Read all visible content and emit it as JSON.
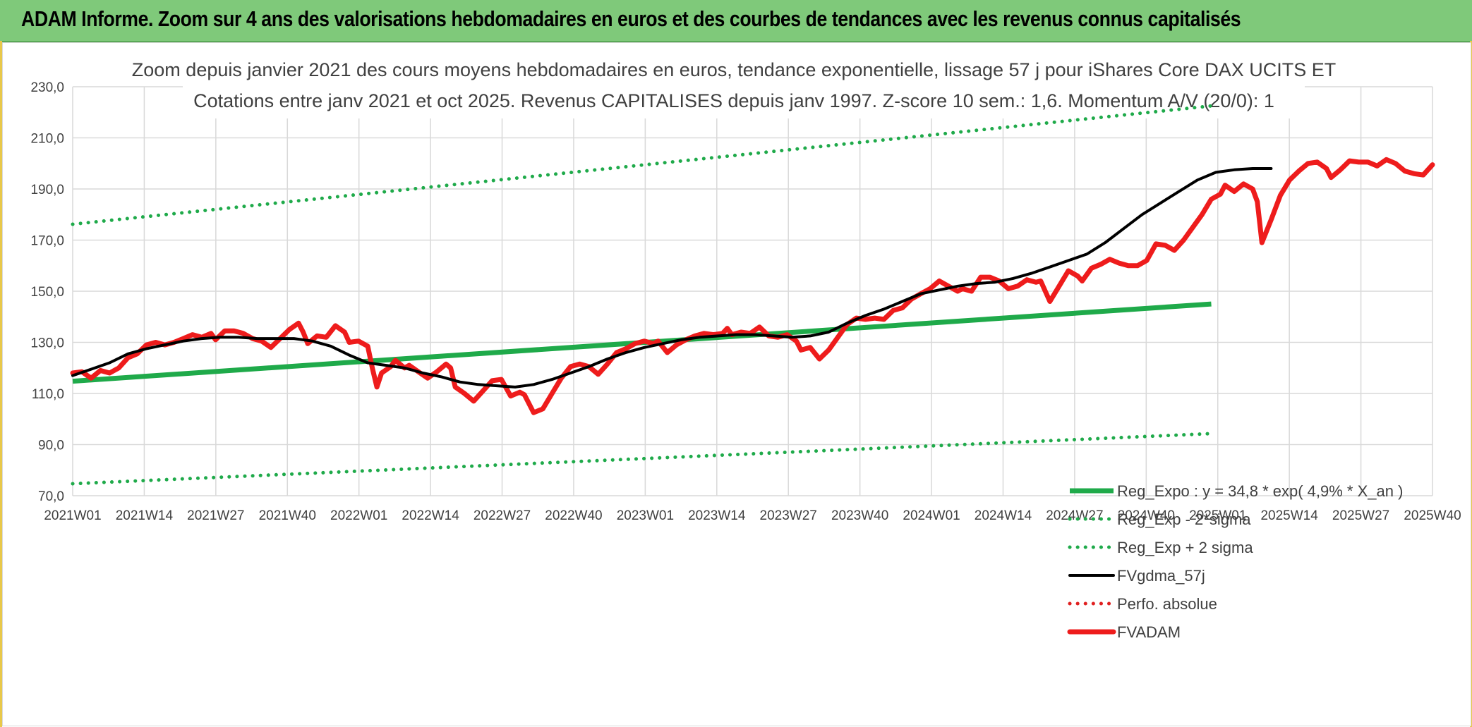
{
  "banner": {
    "text": "ADAM Informe. Zoom sur 4 ans des valorisations hebdomadaires en euros et des courbes de tendances avec les revenus connus capitalisés"
  },
  "colors": {
    "banner_bg": "#7fc97a",
    "trend_green": "#1faa4a",
    "fvadam_red": "#ee1c1c",
    "fvgdma_black": "#000000",
    "perfo_red": "#e02020",
    "grid": "#d9d9d9"
  },
  "chart_data": {
    "type": "line",
    "title": [
      "Zoom depuis janvier 2021 des cours moyens hebdomadaires en euros, tendance exponentielle, lissage 57 j pour iShares Core DAX UCITS ET",
      "Cotations entre janv 2021 et oct 2025. Revenus CAPITALISES depuis janv 1997. Z-score 10 sem.: 1,6. Momentum A/V (20/0): 1"
    ],
    "xlabel": "",
    "ylabel": "",
    "ylim": [
      70,
      230
    ],
    "y_ticks": [
      "70,0",
      "90,0",
      "110,0",
      "130,0",
      "150,0",
      "170,0",
      "190,0",
      "210,0",
      "230,0"
    ],
    "x_ticks": [
      "2021W01",
      "2021W14",
      "2021W27",
      "2021W40",
      "2022W01",
      "2022W14",
      "2022W27",
      "2022W40",
      "2023W01",
      "2023W14",
      "2023W27",
      "2023W40",
      "2024W01",
      "2024W14",
      "2024W27",
      "2024W40",
      "2025W01",
      "2025W14",
      "2025W27",
      "2025W40"
    ],
    "grid": true,
    "legend_position": "bottom-right",
    "series": [
      {
        "name": "Reg_Expo : y = 34,8 * exp( 4,9% *  X_an )",
        "style": "solid-thick",
        "color": "#1faa4a",
        "points": [
          [
            0,
            114.8
          ],
          [
            247,
            145.0
          ]
        ]
      },
      {
        "name": "Reg_Exp - 2*sigma",
        "style": "dotted",
        "color": "#1faa4a",
        "points": [
          [
            0,
            74.7
          ],
          [
            247,
            94.3
          ]
        ]
      },
      {
        "name": "Reg_Exp + 2 sigma",
        "style": "dotted",
        "color": "#1faa4a",
        "points": [
          [
            0,
            176.2
          ],
          [
            247,
            222.5
          ]
        ]
      },
      {
        "name": "FVgdma_57j",
        "style": "solid",
        "color": "#000000",
        "points": [
          [
            0,
            117.0
          ],
          [
            4,
            119.5
          ],
          [
            8,
            122.0
          ],
          [
            12,
            125.5
          ],
          [
            16,
            127.5
          ],
          [
            20,
            129.0
          ],
          [
            24,
            130.5
          ],
          [
            28,
            131.5
          ],
          [
            32,
            132.0
          ],
          [
            36,
            132.0
          ],
          [
            40,
            131.5
          ],
          [
            44,
            131.5
          ],
          [
            48,
            131.5
          ],
          [
            52,
            130.5
          ],
          [
            56,
            128.5
          ],
          [
            60,
            125.0
          ],
          [
            64,
            122.0
          ],
          [
            68,
            121.0
          ],
          [
            72,
            120.0
          ],
          [
            76,
            118.0
          ],
          [
            80,
            116.5
          ],
          [
            84,
            114.5
          ],
          [
            88,
            113.5
          ],
          [
            92,
            113.0
          ],
          [
            96,
            112.5
          ],
          [
            100,
            113.5
          ],
          [
            104,
            115.5
          ],
          [
            108,
            118.0
          ],
          [
            112,
            120.5
          ],
          [
            116,
            123.5
          ],
          [
            120,
            126.0
          ],
          [
            124,
            128.0
          ],
          [
            128,
            129.5
          ],
          [
            132,
            131.0
          ],
          [
            136,
            132.0
          ],
          [
            140,
            132.5
          ],
          [
            144,
            133.0
          ],
          [
            148,
            133.0
          ],
          [
            152,
            132.5
          ],
          [
            156,
            132.0
          ],
          [
            160,
            132.5
          ],
          [
            164,
            134.0
          ],
          [
            168,
            137.5
          ],
          [
            172,
            140.5
          ],
          [
            176,
            143.0
          ],
          [
            180,
            146.0
          ],
          [
            184,
            149.0
          ],
          [
            188,
            150.5
          ],
          [
            192,
            152.0
          ],
          [
            196,
            153.0
          ],
          [
            200,
            153.5
          ],
          [
            204,
            155.0
          ],
          [
            208,
            157.0
          ],
          [
            212,
            159.5
          ],
          [
            216,
            162.0
          ],
          [
            220,
            164.5
          ],
          [
            224,
            169.0
          ],
          [
            228,
            174.5
          ],
          [
            232,
            180.0
          ],
          [
            236,
            184.5
          ],
          [
            240,
            189.0
          ],
          [
            244,
            193.5
          ],
          [
            248,
            196.5
          ],
          [
            252,
            197.5
          ],
          [
            256,
            198.0
          ],
          [
            260,
            198.0
          ]
        ]
      },
      {
        "name": "Perfo. absolue",
        "style": "dotted",
        "color": "#e02020",
        "points": []
      },
      {
        "name": "FVADAM",
        "style": "solid-thick",
        "color": "#ee1c1c",
        "points": [
          [
            0,
            118.0
          ],
          [
            2,
            118.5
          ],
          [
            4,
            116.0
          ],
          [
            6,
            119.0
          ],
          [
            8,
            118.0
          ],
          [
            10,
            120.0
          ],
          [
            12,
            124.0
          ],
          [
            14,
            125.5
          ],
          [
            16,
            129.0
          ],
          [
            18,
            130.0
          ],
          [
            20,
            129.0
          ],
          [
            22,
            130.0
          ],
          [
            24,
            131.5
          ],
          [
            26,
            133.0
          ],
          [
            28,
            132.0
          ],
          [
            30,
            133.5
          ],
          [
            31,
            131.0
          ],
          [
            33,
            134.5
          ],
          [
            35,
            134.5
          ],
          [
            37,
            133.5
          ],
          [
            39,
            131.5
          ],
          [
            41,
            130.5
          ],
          [
            43,
            128.0
          ],
          [
            45,
            131.5
          ],
          [
            47,
            135.0
          ],
          [
            49,
            137.5
          ],
          [
            50,
            134.0
          ],
          [
            51,
            129.5
          ],
          [
            53,
            132.5
          ],
          [
            55,
            132.0
          ],
          [
            57,
            136.5
          ],
          [
            59,
            134.0
          ],
          [
            60,
            130.0
          ],
          [
            62,
            130.5
          ],
          [
            64,
            128.5
          ],
          [
            65,
            120.0
          ],
          [
            66,
            112.5
          ],
          [
            67,
            118.0
          ],
          [
            69,
            120.5
          ],
          [
            70,
            123.0
          ],
          [
            72,
            120.0
          ],
          [
            73,
            121.0
          ],
          [
            75,
            118.5
          ],
          [
            77,
            116.0
          ],
          [
            79,
            118.5
          ],
          [
            81,
            121.5
          ],
          [
            82,
            120.0
          ],
          [
            83,
            112.5
          ],
          [
            85,
            110.0
          ],
          [
            87,
            107.0
          ],
          [
            89,
            111.0
          ],
          [
            91,
            115.0
          ],
          [
            93,
            115.5
          ],
          [
            95,
            109.0
          ],
          [
            97,
            110.5
          ],
          [
            98,
            109.5
          ],
          [
            100,
            102.5
          ],
          [
            102,
            104.0
          ],
          [
            104,
            110.0
          ],
          [
            106,
            116.0
          ],
          [
            108,
            120.5
          ],
          [
            110,
            121.5
          ],
          [
            112,
            120.5
          ],
          [
            114,
            117.5
          ],
          [
            116,
            121.5
          ],
          [
            118,
            126.0
          ],
          [
            120,
            127.5
          ],
          [
            122,
            129.5
          ],
          [
            124,
            130.5
          ],
          [
            126,
            129.5
          ],
          [
            127,
            130.5
          ],
          [
            129,
            126.0
          ],
          [
            131,
            129.0
          ],
          [
            133,
            131.0
          ],
          [
            135,
            132.5
          ],
          [
            137,
            133.5
          ],
          [
            139,
            133.0
          ],
          [
            141,
            133.5
          ],
          [
            142,
            135.5
          ],
          [
            143,
            133.0
          ],
          [
            145,
            134.0
          ],
          [
            147,
            133.5
          ],
          [
            149,
            136.0
          ],
          [
            151,
            132.5
          ],
          [
            153,
            132.0
          ],
          [
            155,
            133.0
          ],
          [
            157,
            130.5
          ],
          [
            158,
            127.0
          ],
          [
            160,
            128.0
          ],
          [
            162,
            123.5
          ],
          [
            164,
            127.0
          ],
          [
            166,
            132.0
          ],
          [
            168,
            137.0
          ],
          [
            170,
            139.5
          ],
          [
            172,
            139.0
          ],
          [
            174,
            139.5
          ],
          [
            176,
            139.0
          ],
          [
            178,
            142.5
          ],
          [
            180,
            143.5
          ],
          [
            182,
            147.0
          ],
          [
            184,
            149.0
          ],
          [
            186,
            151.0
          ],
          [
            188,
            154.0
          ],
          [
            190,
            152.0
          ],
          [
            192,
            150.0
          ],
          [
            193,
            151.0
          ],
          [
            195,
            150.0
          ],
          [
            197,
            155.5
          ],
          [
            199,
            155.5
          ],
          [
            201,
            154.0
          ],
          [
            203,
            151.0
          ],
          [
            205,
            152.0
          ],
          [
            207,
            154.5
          ],
          [
            209,
            153.5
          ],
          [
            210,
            154.0
          ],
          [
            212,
            146.0
          ],
          [
            214,
            152.0
          ],
          [
            216,
            158.0
          ],
          [
            218,
            156.0
          ],
          [
            219,
            154.0
          ],
          [
            221,
            159.0
          ],
          [
            223,
            160.5
          ],
          [
            225,
            162.5
          ],
          [
            227,
            161.0
          ],
          [
            229,
            160.0
          ],
          [
            231,
            160.0
          ],
          [
            233,
            162.0
          ],
          [
            235,
            168.5
          ],
          [
            237,
            168.0
          ],
          [
            239,
            166.0
          ],
          [
            241,
            170.0
          ],
          [
            243,
            175.0
          ],
          [
            245,
            180.0
          ],
          [
            247,
            186.0
          ],
          [
            249,
            188.0
          ],
          [
            250,
            191.5
          ],
          [
            252,
            189.0
          ],
          [
            254,
            192.0
          ],
          [
            256,
            190.0
          ],
          [
            257,
            185.0
          ],
          [
            258,
            169.0
          ],
          [
            260,
            178.0
          ],
          [
            262,
            187.5
          ],
          [
            264,
            193.5
          ],
          [
            266,
            197.0
          ],
          [
            268,
            200.0
          ],
          [
            270,
            200.5
          ],
          [
            272,
            198.0
          ],
          [
            273,
            194.5
          ],
          [
            275,
            197.5
          ],
          [
            277,
            201.0
          ],
          [
            279,
            200.5
          ],
          [
            281,
            200.5
          ],
          [
            283,
            199.0
          ],
          [
            285,
            201.5
          ],
          [
            287,
            200.0
          ],
          [
            289,
            197.0
          ],
          [
            291,
            196.0
          ],
          [
            293,
            195.5
          ],
          [
            295,
            199.5
          ]
        ]
      }
    ]
  }
}
